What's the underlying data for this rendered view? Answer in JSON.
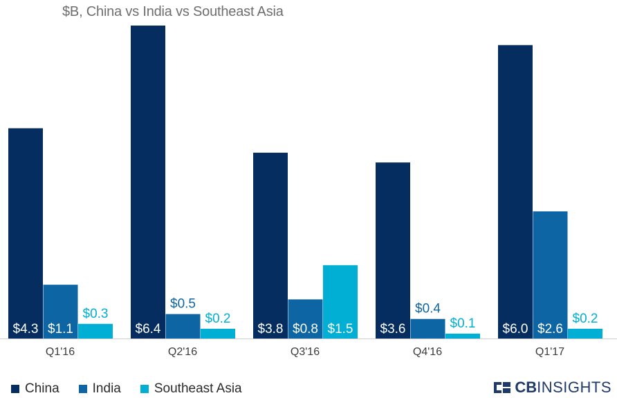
{
  "chart_data": {
    "type": "bar",
    "title": "$B, China vs India vs Southeast Asia",
    "categories": [
      "Q1'16",
      "Q2'16",
      "Q3'16",
      "Q4'16",
      "Q1'17"
    ],
    "series": [
      {
        "name": "China",
        "color": "#062d5f",
        "values": [
          4.3,
          6.4,
          3.8,
          3.6,
          6.0
        ],
        "labels": [
          "$4.3",
          "$6.4",
          "$3.8",
          "$3.6",
          "$6.0"
        ]
      },
      {
        "name": "India",
        "color": "#0e65a3",
        "values": [
          1.1,
          0.5,
          0.8,
          0.4,
          2.6
        ],
        "labels": [
          "$1.1",
          "$0.5",
          "$0.8",
          "$0.4",
          "$2.6"
        ]
      },
      {
        "name": "Southeast Asia",
        "color": "#00afd3",
        "values": [
          0.3,
          0.2,
          1.5,
          0.1,
          0.2
        ],
        "labels": [
          "$0.3",
          "$0.2",
          "$1.5",
          "$0.1",
          "$0.2"
        ]
      }
    ],
    "ylim": [
      0,
      6.4
    ],
    "xlabel": "",
    "ylabel": "",
    "grid": false,
    "legend": "bottom-left"
  },
  "branding": {
    "strong": "CB",
    "light": "INSIGHTS",
    "icon": "cb-insights-logo-icon"
  }
}
